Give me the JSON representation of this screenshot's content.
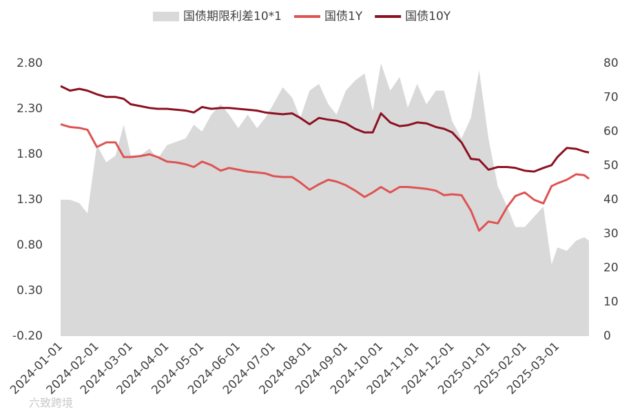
{
  "chart_data": {
    "type": "line",
    "x": [
      "2024-01-01",
      "2024-01-09",
      "2024-01-17",
      "2024-01-24",
      "2024-02-01",
      "2024-02-09",
      "2024-02-17",
      "2024-02-24",
      "2024-03-01",
      "2024-03-09",
      "2024-03-17",
      "2024-03-24",
      "2024-04-01",
      "2024-04-09",
      "2024-04-17",
      "2024-04-24",
      "2024-05-01",
      "2024-05-09",
      "2024-05-17",
      "2024-05-24",
      "2024-06-01",
      "2024-06-09",
      "2024-06-17",
      "2024-06-24",
      "2024-07-01",
      "2024-07-09",
      "2024-07-17",
      "2024-07-24",
      "2024-08-01",
      "2024-08-09",
      "2024-08-17",
      "2024-08-24",
      "2024-09-01",
      "2024-09-09",
      "2024-09-17",
      "2024-09-24",
      "2024-10-01",
      "2024-10-09",
      "2024-10-17",
      "2024-10-24",
      "2024-11-01",
      "2024-11-09",
      "2024-11-17",
      "2024-11-24",
      "2024-12-01",
      "2024-12-09",
      "2024-12-17",
      "2024-12-24",
      "2025-01-01",
      "2025-01-09",
      "2025-01-17",
      "2025-01-24",
      "2025-02-01",
      "2025-02-09",
      "2025-02-17",
      "2025-02-24",
      "2025-03-01",
      "2025-03-09",
      "2025-03-17",
      "2025-03-24",
      "2025-03-28"
    ],
    "series": [
      {
        "name": "国债期限利差10*1",
        "type": "area",
        "axis": "y2",
        "color": "#d9d9d9",
        "values": [
          40,
          40,
          39,
          36,
          56,
          51,
          53,
          62,
          53,
          53,
          55,
          52,
          56,
          57,
          58,
          62,
          60,
          65,
          68,
          65,
          61,
          65,
          61,
          64,
          68,
          73,
          70,
          64,
          72,
          74,
          68,
          65,
          72,
          75,
          77,
          66,
          80,
          72,
          76,
          67,
          74,
          68,
          72,
          72,
          63,
          58,
          64,
          78,
          58,
          44,
          38,
          32,
          32,
          35,
          38,
          21,
          26,
          25,
          28,
          29,
          28
        ]
      },
      {
        "name": "国债1Y",
        "color": "#de5252",
        "values": [
          2.13,
          2.1,
          2.09,
          2.07,
          1.88,
          1.93,
          1.93,
          1.77,
          1.77,
          1.78,
          1.8,
          1.77,
          1.72,
          1.71,
          1.69,
          1.66,
          1.72,
          1.68,
          1.62,
          1.65,
          1.63,
          1.61,
          1.6,
          1.59,
          1.56,
          1.55,
          1.55,
          1.49,
          1.41,
          1.47,
          1.52,
          1.5,
          1.46,
          1.4,
          1.33,
          1.38,
          1.44,
          1.38,
          1.44,
          1.44,
          1.43,
          1.42,
          1.4,
          1.35,
          1.36,
          1.35,
          1.18,
          0.96,
          1.06,
          1.04,
          1.22,
          1.34,
          1.38,
          1.3,
          1.26,
          1.45,
          1.48,
          1.52,
          1.58,
          1.57,
          1.53
        ]
      },
      {
        "name": "国债10Y",
        "color": "#8b1020",
        "values": [
          2.55,
          2.5,
          2.52,
          2.5,
          2.46,
          2.43,
          2.43,
          2.41,
          2.35,
          2.33,
          2.31,
          2.3,
          2.3,
          2.29,
          2.28,
          2.26,
          2.32,
          2.3,
          2.31,
          2.31,
          2.3,
          2.29,
          2.28,
          2.26,
          2.25,
          2.24,
          2.25,
          2.2,
          2.13,
          2.2,
          2.18,
          2.17,
          2.14,
          2.08,
          2.04,
          2.04,
          2.25,
          2.15,
          2.11,
          2.12,
          2.15,
          2.14,
          2.1,
          2.08,
          2.04,
          1.93,
          1.75,
          1.74,
          1.63,
          1.66,
          1.66,
          1.65,
          1.62,
          1.61,
          1.65,
          1.68,
          1.77,
          1.87,
          1.86,
          1.83,
          1.82
        ]
      }
    ],
    "xlim": [
      "2024-01-01",
      "2025-03-28"
    ],
    "xticks": [
      "2024-01-01",
      "2024-02-01",
      "2024-03-01",
      "2024-04-01",
      "2024-05-01",
      "2024-06-01",
      "2024-07-01",
      "2024-08-01",
      "2024-09-01",
      "2024-10-01",
      "2024-11-01",
      "2024-12-01",
      "2025-01-01",
      "2025-02-01",
      "2025-03-01"
    ],
    "ylim": [
      -0.2,
      2.8
    ],
    "yticks": [
      {
        "value": -0.2,
        "label": "-0.20"
      },
      {
        "value": 0.3,
        "label": "0.30"
      },
      {
        "value": 0.8,
        "label": "0.80"
      },
      {
        "value": 1.3,
        "label": "1.30"
      },
      {
        "value": 1.8,
        "label": "1.80"
      },
      {
        "value": 2.3,
        "label": "2.30"
      },
      {
        "value": 2.8,
        "label": "2.80"
      }
    ],
    "y2lim": [
      0,
      80
    ],
    "y2ticks": [
      0,
      10,
      20,
      30,
      40,
      50,
      60,
      70,
      80
    ],
    "legend": "top",
    "watermark": "六致跨境"
  }
}
